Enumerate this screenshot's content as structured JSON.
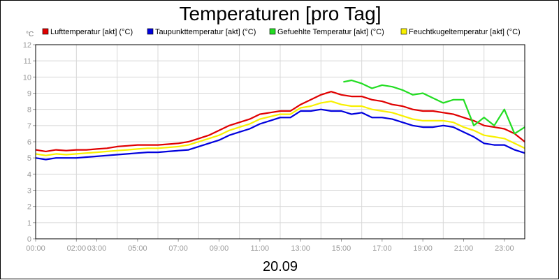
{
  "chart_data": {
    "type": "line",
    "title": "Temperaturen [pro Tag]",
    "y_unit": "°C",
    "date_label": "20.09",
    "ylim": [
      0,
      12
    ],
    "y_ticks": [
      "0",
      "1",
      "2",
      "3",
      "4",
      "5",
      "6",
      "7",
      "8",
      "9",
      "10",
      "11",
      "12"
    ],
    "xlim": [
      0,
      24
    ],
    "x_tick_labels": [
      "00:00",
      "02:00",
      "03:00",
      "05:00",
      "07:00",
      "09:00",
      "11:00",
      "13:00",
      "15:00",
      "17:00",
      "19:00",
      "21:00",
      "23:00"
    ],
    "x_tick_hours": [
      0,
      2,
      3,
      5,
      7,
      9,
      11,
      13,
      15,
      17,
      19,
      21,
      23
    ],
    "grid": true,
    "legend_position": "top",
    "series": [
      {
        "name": "Lufttemperatur [akt] (°C)",
        "color": "#e00000",
        "x": [
          0,
          0.5,
          1,
          1.5,
          2,
          2.5,
          3,
          3.5,
          4,
          4.5,
          5,
          5.5,
          6,
          6.5,
          7,
          7.5,
          8,
          8.5,
          9,
          9.5,
          10,
          10.5,
          11,
          11.5,
          12,
          12.5,
          13,
          13.5,
          14,
          14.5,
          15,
          15.5,
          16,
          16.5,
          17,
          17.5,
          18,
          18.5,
          19,
          19.5,
          20,
          20.5,
          21,
          21.5,
          22,
          22.5,
          23,
          23.5,
          24
        ],
        "values": [
          5.5,
          5.4,
          5.5,
          5.45,
          5.5,
          5.5,
          5.55,
          5.6,
          5.7,
          5.75,
          5.8,
          5.8,
          5.8,
          5.85,
          5.9,
          6.0,
          6.2,
          6.4,
          6.7,
          7.0,
          7.2,
          7.4,
          7.7,
          7.8,
          7.9,
          7.9,
          8.3,
          8.6,
          8.9,
          9.1,
          8.9,
          8.8,
          8.8,
          8.6,
          8.5,
          8.3,
          8.2,
          8.0,
          7.9,
          7.9,
          7.8,
          7.7,
          7.5,
          7.3,
          7.0,
          6.9,
          6.8,
          6.5,
          6.0
        ]
      },
      {
        "name": "Taupunkttemperatur [akt] (°C)",
        "color": "#0000dd",
        "x": [
          0,
          0.5,
          1,
          1.5,
          2,
          2.5,
          3,
          3.5,
          4,
          4.5,
          5,
          5.5,
          6,
          6.5,
          7,
          7.5,
          8,
          8.5,
          9,
          9.5,
          10,
          10.5,
          11,
          11.5,
          12,
          12.5,
          13,
          13.5,
          14,
          14.5,
          15,
          15.5,
          16,
          16.5,
          17,
          17.5,
          18,
          18.5,
          19,
          19.5,
          20,
          20.5,
          21,
          21.5,
          22,
          22.5,
          23,
          23.5,
          24
        ],
        "values": [
          5.0,
          4.9,
          5.0,
          5.0,
          5.0,
          5.05,
          5.1,
          5.15,
          5.2,
          5.25,
          5.3,
          5.35,
          5.35,
          5.4,
          5.45,
          5.5,
          5.7,
          5.9,
          6.1,
          6.4,
          6.6,
          6.8,
          7.1,
          7.3,
          7.5,
          7.5,
          7.9,
          7.9,
          8.0,
          7.9,
          7.9,
          7.7,
          7.8,
          7.5,
          7.5,
          7.4,
          7.2,
          7.0,
          6.9,
          6.9,
          7.0,
          6.9,
          6.6,
          6.3,
          5.9,
          5.8,
          5.8,
          5.5,
          5.3
        ]
      },
      {
        "name": "Gefuehlte Temperatur [akt] (°C)",
        "color": "#22dd22",
        "x": [
          15.1,
          15.5,
          16,
          16.5,
          17,
          17.5,
          18,
          18.5,
          19,
          19.5,
          20,
          20.5,
          21,
          21.5,
          22,
          22.5,
          23,
          23.5,
          24
        ],
        "values": [
          9.7,
          9.8,
          9.6,
          9.3,
          9.5,
          9.4,
          9.2,
          8.9,
          9.0,
          8.7,
          8.4,
          8.6,
          8.6,
          7.0,
          7.5,
          7.0,
          8.0,
          6.5,
          6.9
        ]
      },
      {
        "name": "Feuchtkugeltemperatur [akt] (°C)",
        "color": "#f8f000",
        "x": [
          0,
          0.5,
          1,
          1.5,
          2,
          2.5,
          3,
          3.5,
          4,
          4.5,
          5,
          5.5,
          6,
          6.5,
          7,
          7.5,
          8,
          8.5,
          9,
          9.5,
          10,
          10.5,
          11,
          11.5,
          12,
          12.5,
          13,
          13.5,
          14,
          14.5,
          15,
          15.5,
          16,
          16.5,
          17,
          17.5,
          18,
          18.5,
          19,
          19.5,
          20,
          20.5,
          21,
          21.5,
          22,
          22.5,
          23,
          23.5,
          24
        ],
        "values": [
          5.25,
          5.15,
          5.25,
          5.2,
          5.25,
          5.3,
          5.35,
          5.4,
          5.45,
          5.5,
          5.55,
          5.6,
          5.6,
          5.65,
          5.7,
          5.8,
          6.0,
          6.2,
          6.4,
          6.7,
          6.9,
          7.1,
          7.4,
          7.55,
          7.7,
          7.7,
          8.1,
          8.2,
          8.4,
          8.5,
          8.3,
          8.2,
          8.2,
          8.0,
          7.9,
          7.8,
          7.6,
          7.4,
          7.3,
          7.3,
          7.3,
          7.2,
          6.9,
          6.7,
          6.4,
          6.3,
          6.2,
          5.9,
          5.6
        ]
      }
    ]
  }
}
